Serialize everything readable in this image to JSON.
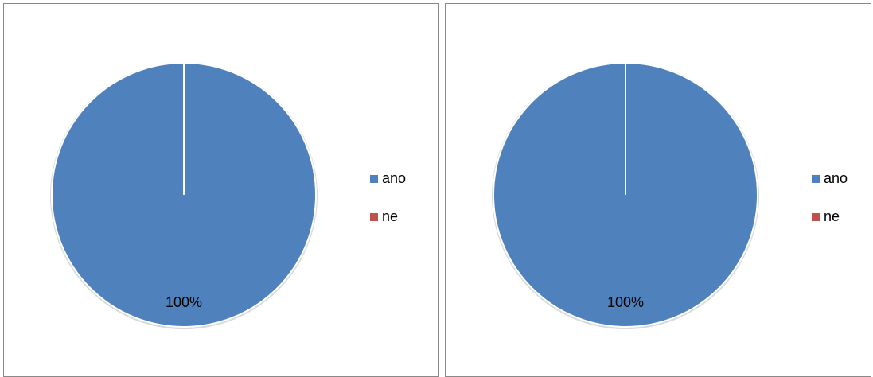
{
  "chart_data": [
    {
      "type": "pie",
      "title": "",
      "categories": [
        "ano",
        "ne"
      ],
      "values": [
        100,
        0
      ],
      "data_labels": [
        "100%",
        ""
      ],
      "colors": [
        "#4F81BD",
        "#C0504D"
      ],
      "legend_position": "right",
      "legend": [
        "ano",
        "ne"
      ]
    },
    {
      "type": "pie",
      "title": "",
      "categories": [
        "ano",
        "ne"
      ],
      "values": [
        100,
        0
      ],
      "data_labels": [
        "100%",
        ""
      ],
      "colors": [
        "#4F81BD",
        "#C0504D"
      ],
      "legend_position": "right",
      "legend": [
        "ano",
        "ne"
      ]
    }
  ]
}
